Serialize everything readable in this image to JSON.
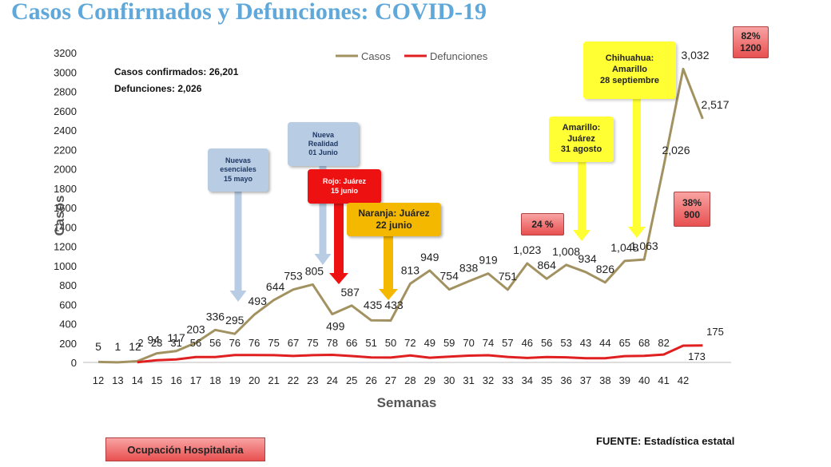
{
  "page": {
    "title": "Casos Confirmados y Defunciones: COVID-19",
    "summary_cases": "Casos confirmados: 26,201",
    "summary_deaths": "Defunciones: 2,026",
    "source": "FUENTE: Estadística estatal",
    "button_label": "Ocupación Hospitalaria"
  },
  "annotations": [
    {
      "id": "nuevas",
      "style": "blue",
      "lines": [
        "Nuevas",
        "esenciales",
        "15 mayo"
      ],
      "arrow_color": "#b8cde4",
      "week": 19
    },
    {
      "id": "nueva-realidad",
      "style": "blue",
      "lines": [
        "Nueva",
        "Realidad",
        "01 Junio"
      ],
      "arrow_color": "#b8cde4",
      "week": 23
    },
    {
      "id": "rojo",
      "style": "red",
      "lines": [
        "Rojo: Juárez",
        "15 junio"
      ],
      "arrow_color": "#ee1111",
      "week": 24
    },
    {
      "id": "naranja",
      "style": "orange",
      "lines": [
        "Naranja: Juárez",
        "22 junio"
      ],
      "arrow_color": "#f5b800",
      "week": 26.5
    },
    {
      "id": "amarillo-juarez",
      "style": "yellow",
      "lines": [
        "Amarillo:",
        "Juárez",
        "31 agosto"
      ],
      "arrow_color": "#ffff33",
      "week": 36
    },
    {
      "id": "chihuahua",
      "style": "yellow",
      "lines": [
        "Chihuahua:",
        "Amarillo",
        "28 septiembre"
      ],
      "arrow_color": "#ffff33",
      "week": 39
    },
    {
      "id": "occ-24",
      "style": "pink",
      "lines": [
        "24 %"
      ]
    },
    {
      "id": "occ-38",
      "style": "pink",
      "lines": [
        "38%",
        "900"
      ]
    },
    {
      "id": "occ-82",
      "style": "pink",
      "lines": [
        "82%",
        "1200"
      ]
    }
  ],
  "chart_data": {
    "type": "line",
    "title": "Casos Confirmados y Defunciones: COVID-19",
    "xlabel": "Semanas",
    "ylabel": "Casos",
    "x": [
      12,
      13,
      14,
      15,
      16,
      17,
      18,
      19,
      20,
      21,
      22,
      23,
      24,
      25,
      26,
      27,
      28,
      29,
      30,
      31,
      32,
      33,
      34,
      35,
      36,
      37,
      38,
      39,
      40,
      41,
      42,
      43
    ],
    "x_tick_labels": [
      "12",
      "13",
      "14",
      "15",
      "16",
      "17",
      "18",
      "19",
      "20",
      "21",
      "22",
      "23",
      "24",
      "25",
      "26",
      "27",
      "28",
      "29",
      "30",
      "31",
      "32",
      "33",
      "34",
      "35",
      "36",
      "37",
      "38",
      "39",
      "40",
      "41",
      "42"
    ],
    "ylim": [
      0,
      3200
    ],
    "y_ticks": [
      0,
      200,
      400,
      600,
      800,
      1000,
      1200,
      1400,
      1600,
      1800,
      2000,
      2200,
      2400,
      2600,
      2800,
      3000,
      3200
    ],
    "y_tick_labels": [
      "0",
      "200",
      "400",
      "600",
      "800",
      "1000",
      "1200",
      "1400",
      "1600",
      "1800",
      "2000",
      "2200",
      "2400",
      "2600",
      "2800",
      "3000",
      "3200"
    ],
    "grid": false,
    "legend": "top",
    "series": [
      {
        "name": "Casos",
        "color": "#a39261",
        "values": [
          5,
          1,
          12,
          94,
          117,
          203,
          336,
          295,
          493,
          644,
          753,
          805,
          499,
          587,
          435,
          433,
          813,
          949,
          754,
          838,
          919,
          751,
          1023,
          864,
          1008,
          934,
          826,
          1048,
          1063,
          2026,
          3032,
          2517
        ],
        "labels": [
          "5",
          "1",
          "12",
          "94",
          "117",
          "203",
          "336",
          "295",
          "493",
          "644",
          "753",
          "805",
          "499",
          "587",
          "435",
          "433",
          "813",
          "949",
          "754",
          "838",
          "919",
          "751",
          "1,023",
          "864",
          "1,008",
          "934",
          "826",
          "1,048",
          "1,063",
          "2,026",
          "3,032",
          "2,517"
        ]
      },
      {
        "name": "Defunciones",
        "color": "#e02020",
        "values": [
          null,
          null,
          2,
          23,
          31,
          56,
          56,
          76,
          76,
          75,
          67,
          75,
          78,
          66,
          51,
          50,
          72,
          49,
          59,
          70,
          74,
          57,
          46,
          56,
          53,
          43,
          44,
          65,
          68,
          82,
          173,
          175
        ],
        "labels": [
          "",
          "",
          "2",
          "23",
          "31",
          "56",
          "56",
          "76",
          "76",
          "75",
          "67",
          "75",
          "78",
          "66",
          "51",
          "50",
          "72",
          "49",
          "59",
          "70",
          "74",
          "57",
          "46",
          "56",
          "53",
          "43",
          "44",
          "65",
          "68",
          "82",
          "173",
          "175"
        ]
      }
    ]
  }
}
